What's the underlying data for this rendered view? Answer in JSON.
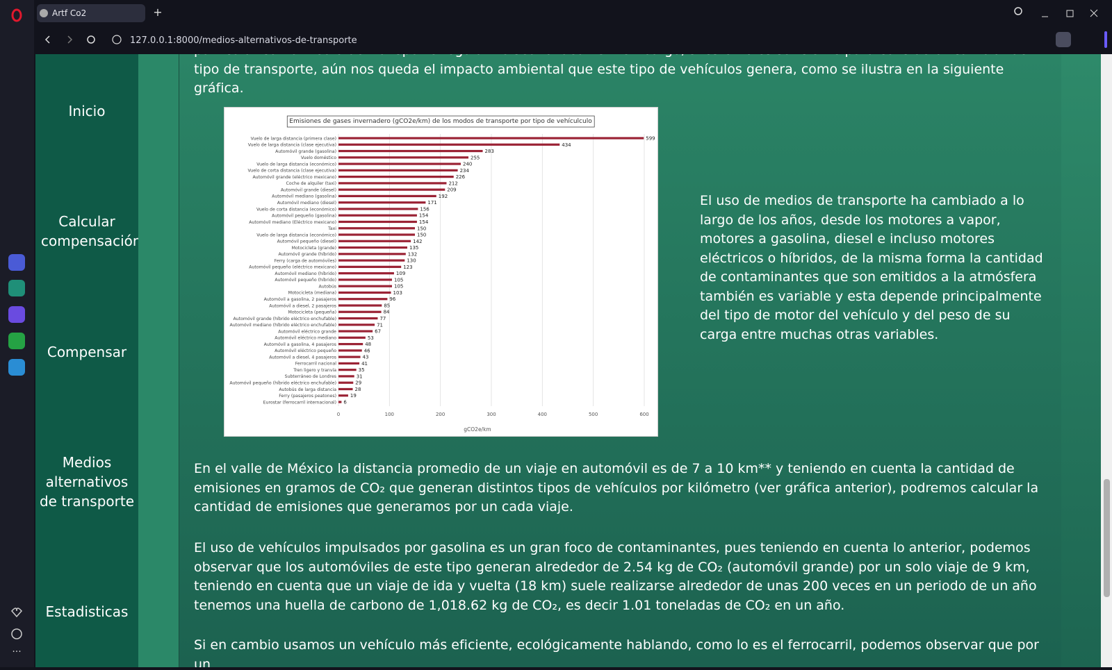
{
  "browser": {
    "tab_title": "Artf Co2",
    "url": "127.0.0.1:8000/medios-alternativos-de-transporte"
  },
  "nav": [
    "Inicio",
    "Calcular compensación",
    "Compensar",
    "Medios alternativos de transporte",
    "Estadisticas"
  ],
  "content": {
    "paragraph_top": "particular como medio de transporte regular no sea lo ideal. Sin embargo, si esto no es suficiente para considerar cambiar de tipo de transporte, aún nos queda el impacto ambiental que este tipo de vehículos genera, como se ilustra en la siguiente gráfica.",
    "paragraph_side": "El uso de medios de transporte ha cambiado a lo largo de los años, desde los motores a vapor, motores a gasolina, diesel e incluso motores eléctricos o híbridos, de la misma forma la cantidad de contaminantes que son emitidos a la atmósfera también es variable y esta depende principalmente del tipo de motor del vehículo y del peso de su carga entre muchas otras variables.",
    "paragraph_2": "En el valle de México la distancia promedio de un viaje en automóvil es de 7 a 10 km** y teniendo en cuenta la cantidad de emisiones en gramos de CO₂ que generan distintos tipos de vehículos por kilómetro (ver gráfica anterior), podremos calcular la cantidad de emisiones que generamos por un cada viaje.",
    "paragraph_3": "El uso de vehículos impulsados por gasolina es un gran foco de contaminantes, pues teniendo en cuenta lo anterior, podemos observar que los automóviles de este tipo generan alrededor de 2.54 kg de CO₂ (automóvil grande) por un solo viaje de 9 km, teniendo en cuenta que un viaje de ida y vuelta (18 km) suele realizarse alrededor de unas 200 veces en un periodo de un año tenemos una huella de carbono de 1,018.62 kg de CO₂, es decir 1.01 toneladas de CO₂ en un año.",
    "paragraph_4": "Si en cambio usamos un vehículo más eficiente, ecológicamente hablando, como lo es el ferrocarril, podemos observar que por un"
  },
  "chart_data": {
    "type": "hbar",
    "title": "Emisiones de gases invernadero (gCO2e/km) de los modos de transporte por tipo de vehículculo",
    "x_label": "gCO2e/km",
    "categories": [
      "Vuelo de larga distancia (primera clase)",
      "Vuelo de larga distancia (clase ejecutiva)",
      "Automóvil grande (gasolina)",
      "Vuelo doméstico",
      "Vuelo de larga distancia (económico)",
      "Vuelo de corta distancia (clase ejecutiva)",
      "Automóvil grande (eléctrico mexicano)",
      "Coche de alquiler (taxi)",
      "Automóvil grande (diesel)",
      "Automóvil mediano (gasolina)",
      "Automóvil mediano (diesel)",
      "Vuelo de corta distancia (económico)",
      "Automóvil pequeño (gasolina)",
      "Automóvil mediano (Eléctrico mexicano)",
      "Taxi",
      "Vuelo de larga distancia (económico)",
      "Automóvil pequeño (diesel)",
      "Motocicleta (grande)",
      "Automóvil grande (híbrido)",
      "Ferry (carga de automóviles)",
      "Automóvil pequeño (eléctrico mexicano)",
      "Automóvil mediano (híbrido)",
      "Automóvil pequeño (híbrido)",
      "Autobús",
      "Motocicleta (mediana)",
      "Automóvil a gasolina, 2 pasajeros",
      "Automóvil a diesel, 2 pasajeros",
      "Motocicleta (pequeña)",
      "Automóvil grande (híbrido eléctrico enchufable)",
      "Automóvil mediano (híbrido eléctrico enchufable)",
      "Automóvil eléctrico grande",
      "Automóvil eléctrico mediano",
      "Automóvil a gasolina, 4 pasajeros",
      "Automóvil eléctrico pequeño",
      "Automóvil a diesel, 4 pasajeros",
      "Ferrocarril nacional",
      "Tren ligero y tranvía",
      "Subterráneo de Londres",
      "Automóvil pequeño (híbrido eléctrico enchufable)",
      "Autobús de larga distancia",
      "Ferry (pasajeros peatones)",
      "Eurostar (ferrocarril internacional)"
    ],
    "values": [
      599,
      434,
      283,
      255,
      240,
      234,
      226,
      212,
      209,
      192,
      171,
      156,
      154,
      154,
      150,
      150,
      142,
      135,
      132,
      130,
      123,
      109,
      105,
      105,
      103,
      96,
      85,
      84,
      77,
      71,
      67,
      53,
      48,
      46,
      43,
      41,
      35,
      31,
      29,
      28,
      19,
      6
    ],
    "color": "#9b2335",
    "xlim": [
      0,
      600
    ],
    "xticks": [
      0,
      100,
      200,
      300,
      400,
      500,
      600
    ],
    "grid": true
  }
}
